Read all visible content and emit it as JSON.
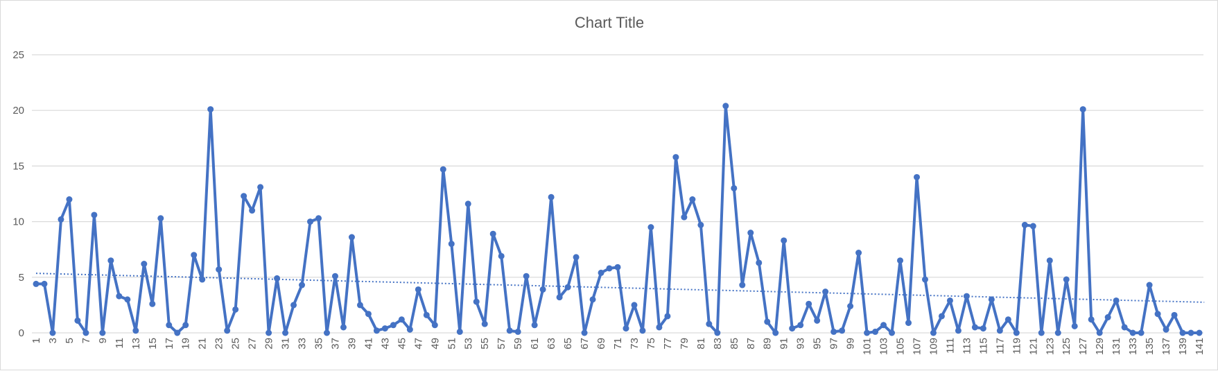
{
  "chart_data": {
    "type": "line",
    "title": "Chart Title",
    "xlabel": "",
    "ylabel": "",
    "ylim": [
      0,
      25
    ],
    "y_ticks": [
      0,
      5,
      10,
      15,
      20,
      25
    ],
    "x_tick_step": 2,
    "grid": true,
    "legend": "none",
    "trendline": {
      "type": "linear",
      "style": "dotted",
      "start": 5.35,
      "end": 2.75
    },
    "colors": {
      "series": "#4472C4",
      "trend": "#4472C4",
      "grid": "#D9D9D9",
      "text": "#595959"
    },
    "series": [
      {
        "values": [
          4.4,
          4.4,
          0,
          10.2,
          12,
          1.1,
          0,
          10.6,
          0,
          6.5,
          3.3,
          3,
          0.2,
          6.2,
          2.6,
          10.3,
          0.7,
          0,
          0.7,
          7,
          4.8,
          20.1,
          5.7,
          0.2,
          2.1,
          12.3,
          11,
          13.1,
          0,
          4.9,
          0,
          2.5,
          4.3,
          10,
          10.3,
          0,
          5.1,
          0.5,
          8.6,
          2.5,
          1.7,
          0.2,
          0.4,
          0.7,
          1.2,
          0.3,
          3.9,
          1.6,
          0.7,
          14.7,
          8,
          0.1,
          11.6,
          2.8,
          0.8,
          8.9,
          6.9,
          0.2,
          0.1,
          5.1,
          0.7,
          3.9,
          12.2,
          3.2,
          4.1,
          6.8,
          0,
          3,
          5.4,
          5.8,
          5.9,
          0.4,
          2.5,
          0.2,
          9.5,
          0.5,
          1.5,
          15.8,
          10.4,
          12,
          9.7,
          0.8,
          0,
          20.4,
          13,
          4.3,
          9,
          6.3,
          1,
          0,
          8.3,
          0.4,
          0.7,
          2.6,
          1.1,
          3.7,
          0.1,
          0.2,
          2.4,
          7.2,
          0,
          0.1,
          0.7,
          0,
          6.5,
          0.9,
          14,
          4.8,
          0,
          1.5,
          2.9,
          0.2,
          3.3,
          0.5,
          0.4,
          3,
          0.2,
          1.2,
          0,
          9.7,
          9.6,
          0,
          6.5,
          0,
          4.8,
          0.6,
          20.1,
          1.2,
          0,
          1.4,
          2.9,
          0.5,
          0,
          0,
          4.3,
          1.7,
          0.3,
          1.6,
          0,
          0,
          0
        ]
      }
    ]
  }
}
